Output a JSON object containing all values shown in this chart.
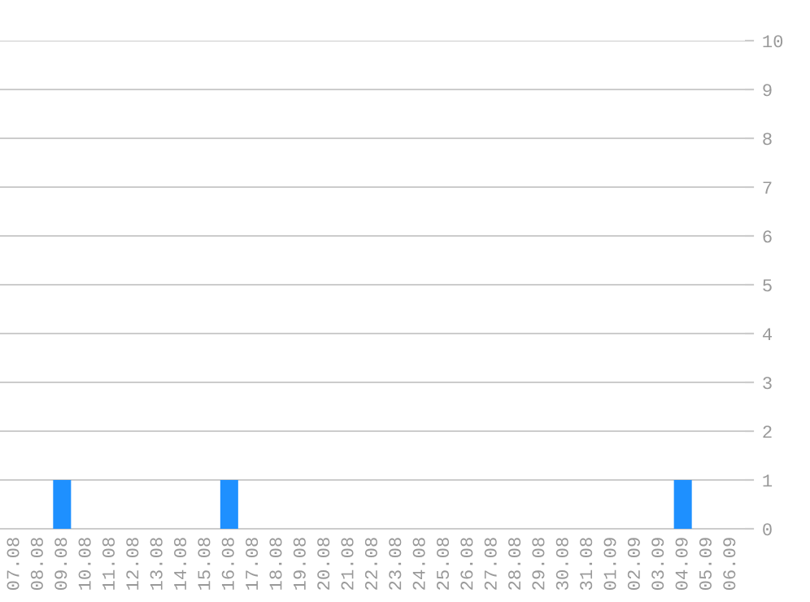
{
  "chart_data": {
    "type": "bar",
    "categories": [
      "07.08",
      "08.08",
      "09.08",
      "10.08",
      "11.08",
      "12.08",
      "13.08",
      "14.08",
      "15.08",
      "16.08",
      "17.08",
      "18.08",
      "19.08",
      "20.08",
      "21.08",
      "22.08",
      "23.08",
      "24.08",
      "25.08",
      "26.08",
      "27.08",
      "28.08",
      "29.08",
      "30.08",
      "31.08",
      "01.09",
      "02.09",
      "03.09",
      "04.09",
      "05.09",
      "06.09"
    ],
    "values": [
      0,
      0,
      1,
      0,
      0,
      0,
      0,
      0,
      0,
      1,
      0,
      0,
      0,
      0,
      0,
      0,
      0,
      0,
      0,
      0,
      0,
      0,
      0,
      0,
      0,
      0,
      0,
      0,
      1,
      0,
      0
    ],
    "color": "#1e90ff",
    "ylim": [
      0,
      10
    ],
    "yticks": [
      0,
      1,
      2,
      3,
      4,
      5,
      6,
      7,
      8,
      9,
      10
    ],
    "grid": "y"
  }
}
